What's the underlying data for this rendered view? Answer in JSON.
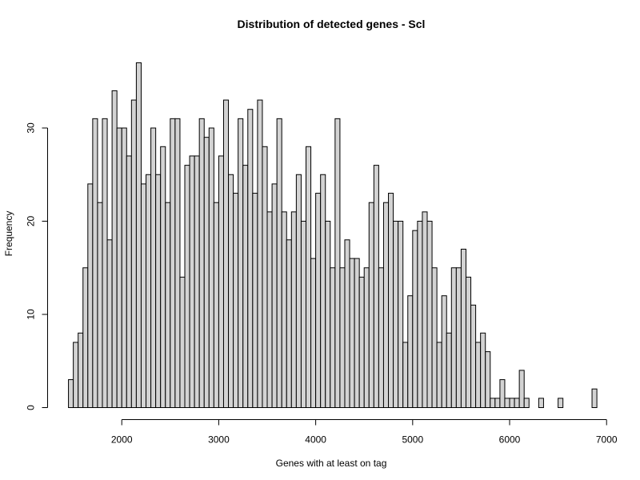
{
  "chart_data": {
    "type": "bar",
    "title": "Distribution of detected genes - Scl",
    "xlabel": "Genes with at least on tag",
    "ylabel": "Frequency",
    "bar_color": "#d3d3d3",
    "edge_color": "#000000",
    "xlim": [
      1400,
      7000
    ],
    "ylim": [
      0,
      37
    ],
    "bin_width": 50,
    "x_ticks": [
      2000,
      3000,
      4000,
      5000,
      6000,
      7000
    ],
    "y_ticks": [
      0,
      10,
      20,
      30
    ],
    "bins_start": [
      1450,
      1500,
      1550,
      1600,
      1650,
      1700,
      1750,
      1800,
      1850,
      1900,
      1950,
      2000,
      2050,
      2100,
      2150,
      2200,
      2250,
      2300,
      2350,
      2400,
      2450,
      2500,
      2550,
      2600,
      2650,
      2700,
      2750,
      2800,
      2850,
      2900,
      2950,
      3000,
      3050,
      3100,
      3150,
      3200,
      3250,
      3300,
      3350,
      3400,
      3450,
      3500,
      3550,
      3600,
      3650,
      3700,
      3750,
      3800,
      3850,
      3900,
      3950,
      4000,
      4050,
      4100,
      4150,
      4200,
      4250,
      4300,
      4350,
      4400,
      4450,
      4500,
      4550,
      4600,
      4650,
      4700,
      4750,
      4800,
      4850,
      4900,
      4950,
      5000,
      5050,
      5100,
      5150,
      5200,
      5250,
      5300,
      5350,
      5400,
      5450,
      5500,
      5550,
      5600,
      5650,
      5700,
      5750,
      5800,
      5850,
      5900,
      5950,
      6000,
      6050,
      6100,
      6150,
      6200,
      6250,
      6300,
      6350,
      6400,
      6450,
      6500,
      6550,
      6600,
      6650,
      6700,
      6750,
      6800,
      6850
    ],
    "values": [
      3,
      7,
      8,
      15,
      24,
      31,
      22,
      31,
      18,
      34,
      30,
      30,
      27,
      33,
      37,
      24,
      25,
      30,
      25,
      28,
      22,
      31,
      31,
      14,
      26,
      27,
      27,
      31,
      29,
      30,
      22,
      27,
      33,
      25,
      23,
      31,
      26,
      32,
      23,
      33,
      28,
      21,
      24,
      31,
      21,
      18,
      21,
      25,
      20,
      28,
      16,
      23,
      25,
      20,
      15,
      31,
      15,
      18,
      16,
      16,
      14,
      15,
      22,
      26,
      15,
      22,
      23,
      20,
      20,
      7,
      12,
      19,
      20,
      21,
      20,
      15,
      7,
      12,
      8,
      15,
      15,
      17,
      14,
      11,
      7,
      8,
      6,
      1,
      1,
      3,
      1,
      1,
      1,
      4,
      1,
      0,
      0,
      1,
      0,
      0,
      0,
      1,
      0,
      0,
      0,
      0,
      0,
      0,
      2
    ]
  }
}
